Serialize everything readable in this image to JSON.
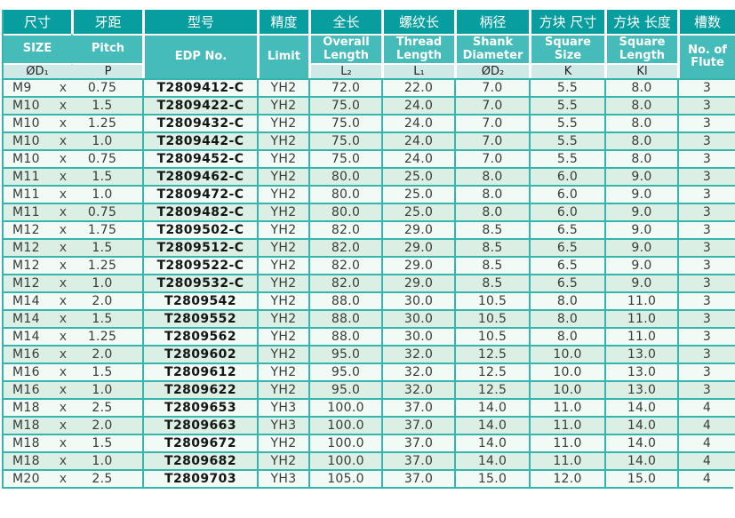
{
  "chart_data": {
    "type": "table",
    "header": {
      "cn": [
        "尺寸",
        "牙距",
        "型号",
        "精度",
        "全长",
        "螺纹长",
        "柄径",
        "方块 尺寸",
        "方块 长度",
        "槽数"
      ],
      "en": [
        "SIZE",
        "Pitch",
        "EDP No.",
        "Limit",
        "Overall Length",
        "Thread Length",
        "Shank Diameter",
        "Square Size",
        "Square Length",
        "No. of Flute"
      ],
      "sym": [
        "ØD₁",
        "P",
        "",
        "",
        "L₂",
        "L₁",
        "ØD₂",
        "K",
        "Kl",
        ""
      ]
    },
    "rows": [
      [
        "M9",
        "x",
        "0.75",
        "T2809412-C",
        "YH2",
        "72.0",
        "22.0",
        "7.0",
        "5.5",
        "8.0",
        "3"
      ],
      [
        "M10",
        "x",
        "1.5",
        "T2809422-C",
        "YH2",
        "75.0",
        "24.0",
        "7.0",
        "5.5",
        "8.0",
        "3"
      ],
      [
        "M10",
        "x",
        "1.25",
        "T2809432-C",
        "YH2",
        "75.0",
        "24.0",
        "7.0",
        "5.5",
        "8.0",
        "3"
      ],
      [
        "M10",
        "x",
        "1.0",
        "T2809442-C",
        "YH2",
        "75.0",
        "24.0",
        "7.0",
        "5.5",
        "8.0",
        "3"
      ],
      [
        "M10",
        "x",
        "0.75",
        "T2809452-C",
        "YH2",
        "75.0",
        "24.0",
        "7.0",
        "5.5",
        "8.0",
        "3"
      ],
      [
        "M11",
        "x",
        "1.5",
        "T2809462-C",
        "YH2",
        "80.0",
        "25.0",
        "8.0",
        "6.0",
        "9.0",
        "3"
      ],
      [
        "M11",
        "x",
        "1.0",
        "T2809472-C",
        "YH2",
        "80.0",
        "25.0",
        "8.0",
        "6.0",
        "9.0",
        "3"
      ],
      [
        "M11",
        "x",
        "0.75",
        "T2809482-C",
        "YH2",
        "80.0",
        "25.0",
        "8.0",
        "6.0",
        "9.0",
        "3"
      ],
      [
        "M12",
        "x",
        "1.75",
        "T2809502-C",
        "YH2",
        "82.0",
        "29.0",
        "8.5",
        "6.5",
        "9.0",
        "3"
      ],
      [
        "M12",
        "x",
        "1.5",
        "T2809512-C",
        "YH2",
        "82.0",
        "29.0",
        "8.5",
        "6.5",
        "9.0",
        "3"
      ],
      [
        "M12",
        "x",
        "1.25",
        "T2809522-C",
        "YH2",
        "82.0",
        "29.0",
        "8.5",
        "6.5",
        "9.0",
        "3"
      ],
      [
        "M12",
        "x",
        "1.0",
        "T2809532-C",
        "YH2",
        "82.0",
        "29.0",
        "8.5",
        "6.5",
        "9.0",
        "3"
      ],
      [
        "M14",
        "x",
        "2.0",
        "T2809542",
        "YH2",
        "88.0",
        "30.0",
        "10.5",
        "8.0",
        "11.0",
        "3"
      ],
      [
        "M14",
        "x",
        "1.5",
        "T2809552",
        "YH2",
        "88.0",
        "30.0",
        "10.5",
        "8.0",
        "11.0",
        "3"
      ],
      [
        "M14",
        "x",
        "1.25",
        "T2809562",
        "YH2",
        "88.0",
        "30.0",
        "10.5",
        "8.0",
        "11.0",
        "3"
      ],
      [
        "M16",
        "x",
        "2.0",
        "T2809602",
        "YH2",
        "95.0",
        "32.0",
        "12.5",
        "10.0",
        "13.0",
        "3"
      ],
      [
        "M16",
        "x",
        "1.5",
        "T2809612",
        "YH2",
        "95.0",
        "32.0",
        "12.5",
        "10.0",
        "13.0",
        "3"
      ],
      [
        "M16",
        "x",
        "1.0",
        "T2809622",
        "YH2",
        "95.0",
        "32.0",
        "12.5",
        "10.0",
        "13.0",
        "3"
      ],
      [
        "M18",
        "x",
        "2.5",
        "T2809653",
        "YH3",
        "100.0",
        "37.0",
        "14.0",
        "11.0",
        "14.0",
        "4"
      ],
      [
        "M18",
        "x",
        "2.0",
        "T2809663",
        "YH3",
        "100.0",
        "37.0",
        "14.0",
        "11.0",
        "14.0",
        "4"
      ],
      [
        "M18",
        "x",
        "1.5",
        "T2809672",
        "YH2",
        "100.0",
        "37.0",
        "14.0",
        "11.0",
        "14.0",
        "4"
      ],
      [
        "M18",
        "x",
        "1.0",
        "T2809682",
        "YH2",
        "100.0",
        "37.0",
        "14.0",
        "11.0",
        "14.0",
        "4"
      ],
      [
        "M20",
        "x",
        "2.5",
        "T2809703",
        "YH3",
        "105.0",
        "37.0",
        "15.0",
        "12.0",
        "15.0",
        "4"
      ]
    ]
  },
  "colors": {
    "header_dark_teal": "#089e9f",
    "header_medium_teal": "#45bcba",
    "header_light_strip": "#cfeae6",
    "row_light": "#f2faf6",
    "row_green": "#dcefe5",
    "grid_teal": "#35b5ad"
  }
}
